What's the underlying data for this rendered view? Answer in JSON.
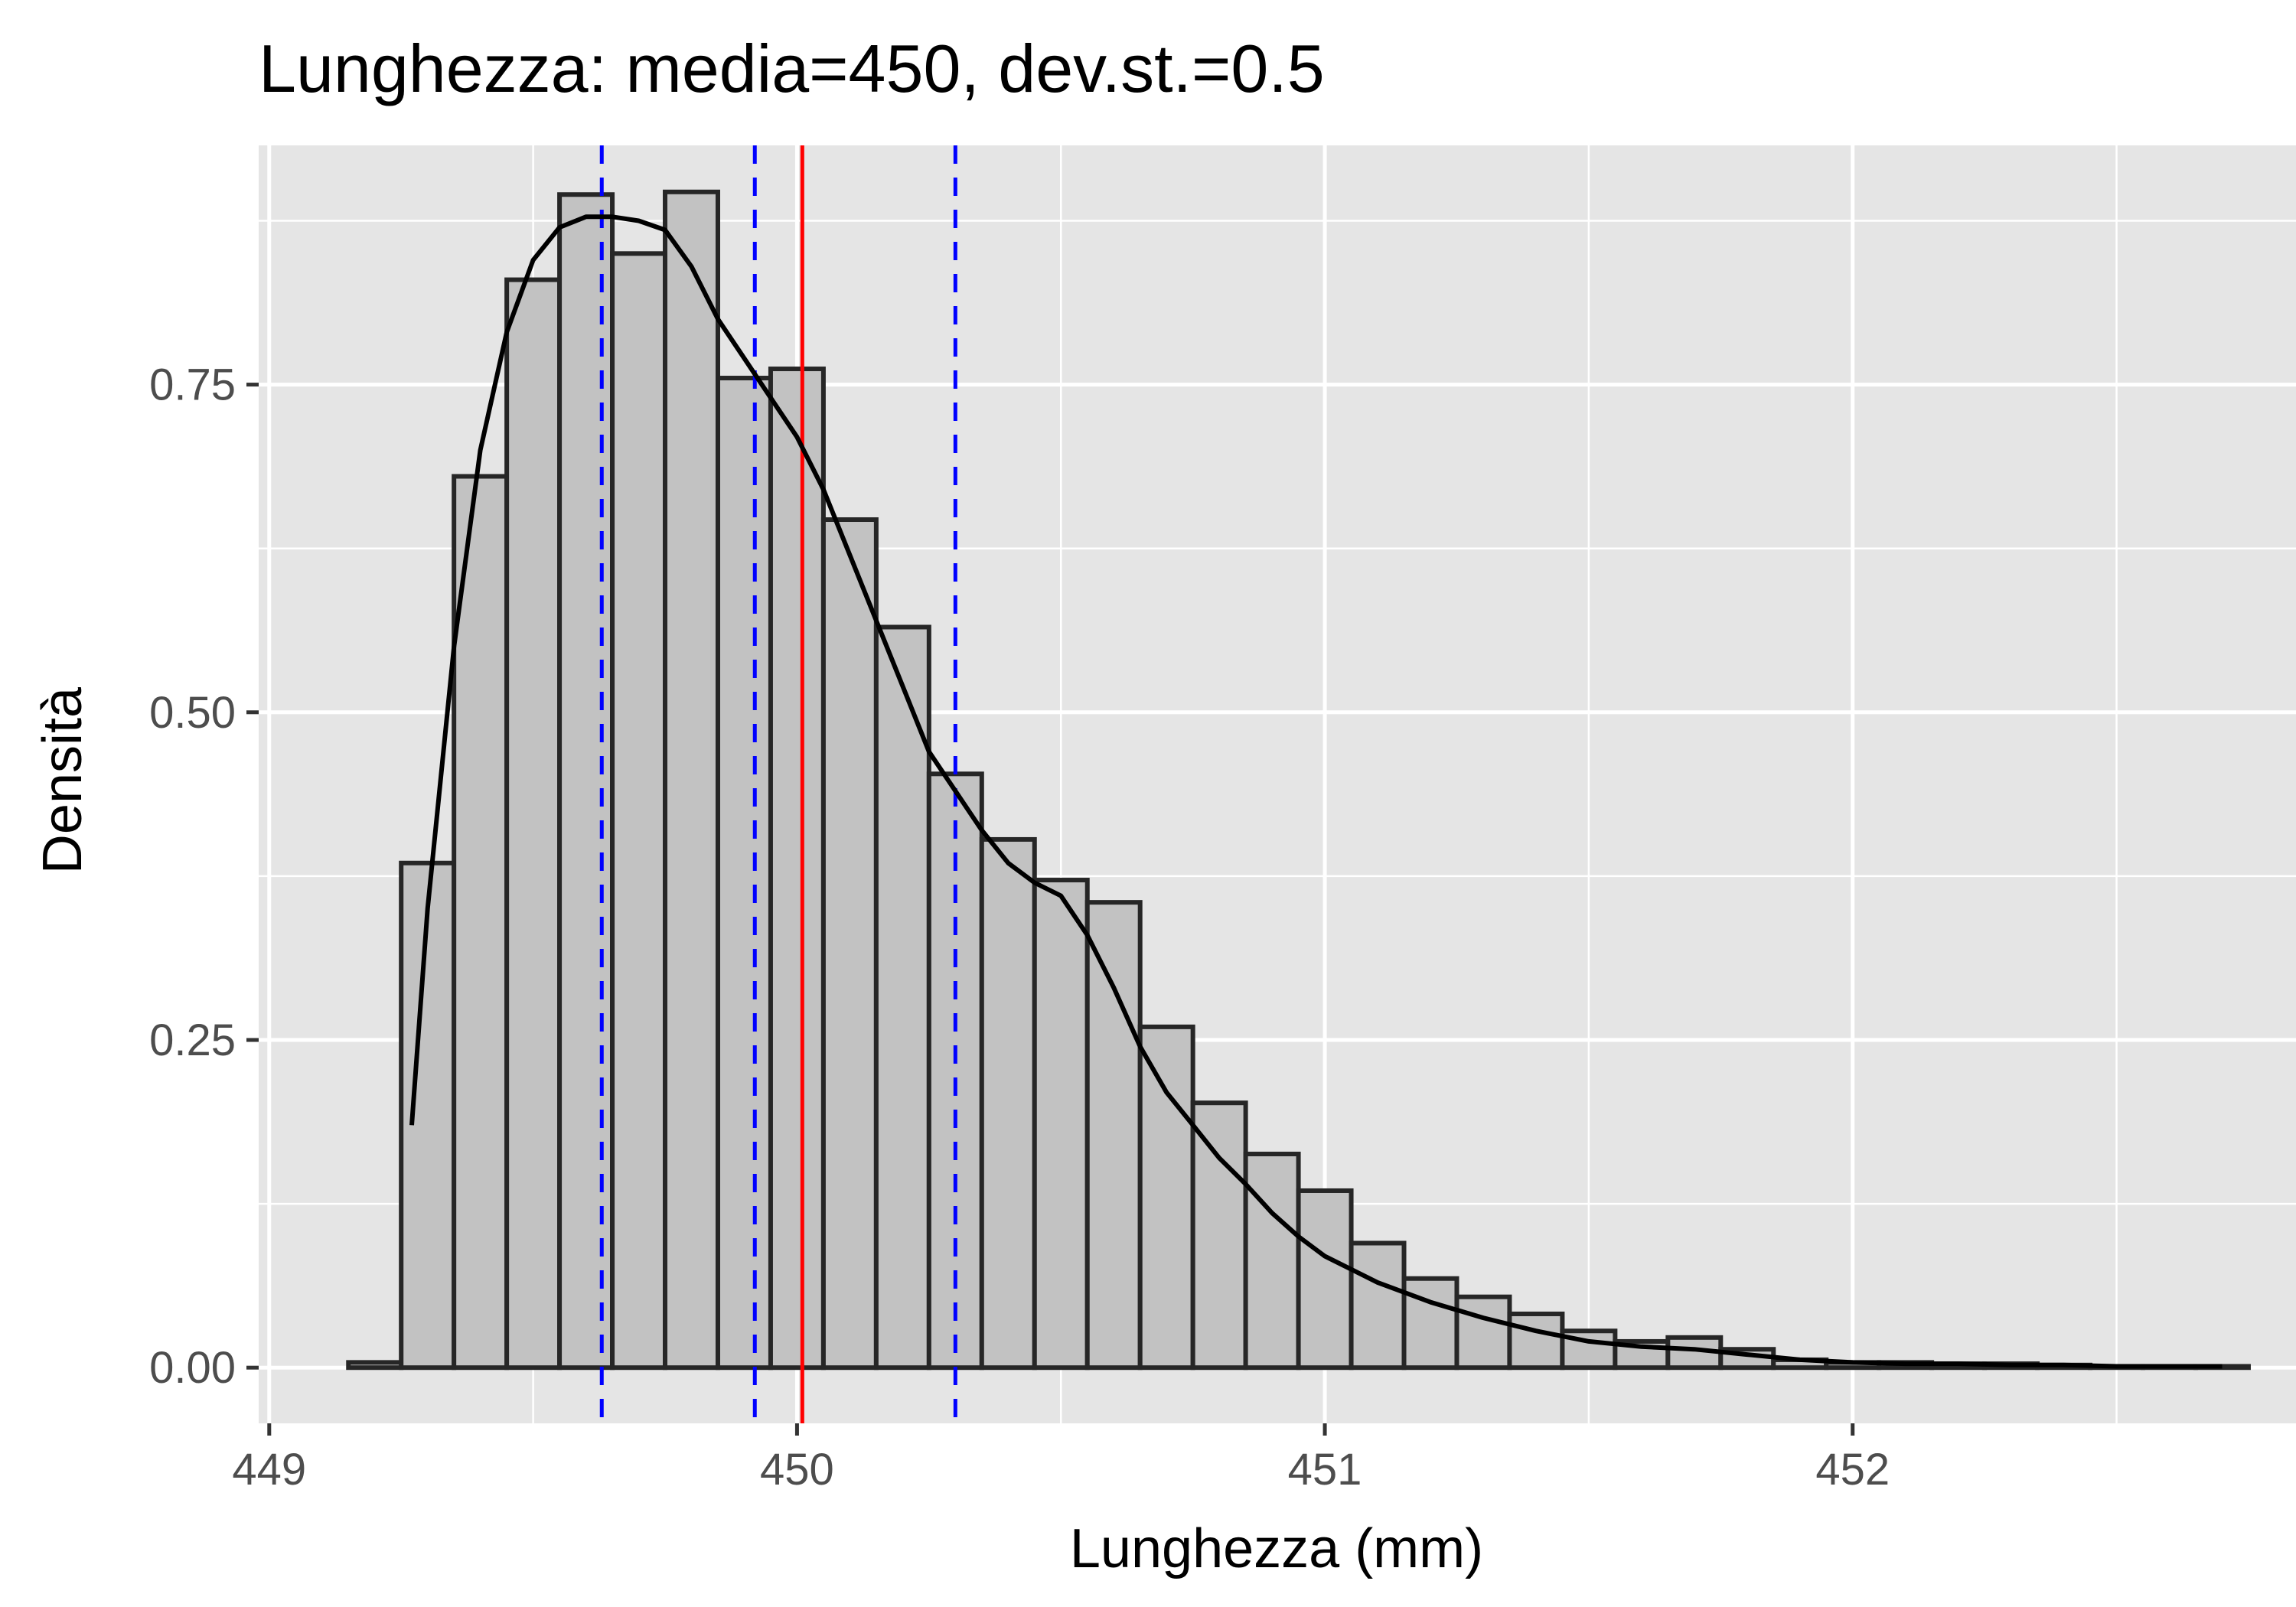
{
  "chart_data": {
    "type": "bar",
    "title": "Lunghezza: media=450, dev.st.=0.5",
    "xlabel": "Lunghezza (mm)",
    "ylabel": "Densità",
    "xlim": [
      448.98,
      452.84
    ],
    "ylim": [
      -0.0425,
      0.9325
    ],
    "x_ticks": [
      449,
      450,
      451,
      452
    ],
    "x_tick_labels": [
      "449",
      "450",
      "451",
      "452"
    ],
    "y_ticks": [
      0.0,
      0.25,
      0.5,
      0.75
    ],
    "y_tick_labels": [
      "0.00",
      "0.25",
      "0.50",
      "0.75"
    ],
    "x_minor_grid": [
      449.5,
      450.5,
      451.5,
      452.5
    ],
    "y_minor_grid": [
      0.125,
      0.375,
      0.625,
      0.875
    ],
    "grid": true,
    "bin_width": 0.1,
    "bins": [
      {
        "x0": 449.15,
        "x1": 449.25,
        "density": 0.004
      },
      {
        "x0": 449.25,
        "x1": 449.35,
        "density": 0.385
      },
      {
        "x0": 449.35,
        "x1": 449.45,
        "density": 0.68
      },
      {
        "x0": 449.45,
        "x1": 449.55,
        "density": 0.83
      },
      {
        "x0": 449.55,
        "x1": 449.65,
        "density": 0.895
      },
      {
        "x0": 449.65,
        "x1": 449.75,
        "density": 0.85
      },
      {
        "x0": 449.75,
        "x1": 449.85,
        "density": 0.897
      },
      {
        "x0": 449.85,
        "x1": 449.95,
        "density": 0.755
      },
      {
        "x0": 449.95,
        "x1": 450.05,
        "density": 0.762
      },
      {
        "x0": 450.05,
        "x1": 450.15,
        "density": 0.647
      },
      {
        "x0": 450.15,
        "x1": 450.25,
        "density": 0.565
      },
      {
        "x0": 450.25,
        "x1": 450.35,
        "density": 0.453
      },
      {
        "x0": 450.35,
        "x1": 450.45,
        "density": 0.403
      },
      {
        "x0": 450.45,
        "x1": 450.55,
        "density": 0.372
      },
      {
        "x0": 450.55,
        "x1": 450.65,
        "density": 0.355
      },
      {
        "x0": 450.65,
        "x1": 450.75,
        "density": 0.26
      },
      {
        "x0": 450.75,
        "x1": 450.85,
        "density": 0.202
      },
      {
        "x0": 450.85,
        "x1": 450.95,
        "density": 0.163
      },
      {
        "x0": 450.95,
        "x1": 451.05,
        "density": 0.135
      },
      {
        "x0": 451.05,
        "x1": 451.15,
        "density": 0.095
      },
      {
        "x0": 451.15,
        "x1": 451.25,
        "density": 0.068
      },
      {
        "x0": 451.25,
        "x1": 451.35,
        "density": 0.054
      },
      {
        "x0": 451.35,
        "x1": 451.45,
        "density": 0.041
      },
      {
        "x0": 451.45,
        "x1": 451.55,
        "density": 0.028
      },
      {
        "x0": 451.55,
        "x1": 451.65,
        "density": 0.02
      },
      {
        "x0": 451.65,
        "x1": 451.75,
        "density": 0.023
      },
      {
        "x0": 451.75,
        "x1": 451.85,
        "density": 0.014
      },
      {
        "x0": 451.85,
        "x1": 451.95,
        "density": 0.006
      },
      {
        "x0": 451.95,
        "x1": 452.05,
        "density": 0.004
      },
      {
        "x0": 452.05,
        "x1": 452.15,
        "density": 0.004
      },
      {
        "x0": 452.15,
        "x1": 452.25,
        "density": 0.003
      },
      {
        "x0": 452.25,
        "x1": 452.35,
        "density": 0.003
      },
      {
        "x0": 452.35,
        "x1": 452.45,
        "density": 0.002
      },
      {
        "x0": 452.45,
        "x1": 452.55,
        "density": 0.001
      },
      {
        "x0": 452.55,
        "x1": 452.65,
        "density": 0.001
      },
      {
        "x0": 452.65,
        "x1": 452.75,
        "density": 0.001
      }
    ],
    "density_curve": {
      "x": [
        449.27,
        449.3,
        449.35,
        449.4,
        449.45,
        449.5,
        449.55,
        449.6,
        449.65,
        449.7,
        449.75,
        449.8,
        449.85,
        449.9,
        449.95,
        450.0,
        450.05,
        450.1,
        450.15,
        450.2,
        450.25,
        450.3,
        450.35,
        450.4,
        450.45,
        450.5,
        450.55,
        450.6,
        450.65,
        450.7,
        450.75,
        450.8,
        450.85,
        450.9,
        450.95,
        451.0,
        451.1,
        451.2,
        451.3,
        451.4,
        451.5,
        451.6,
        451.7,
        451.8,
        451.9,
        452.0,
        452.1,
        452.2,
        452.3,
        452.4,
        452.5,
        452.6,
        452.7
      ],
      "y": [
        0.185,
        0.35,
        0.55,
        0.7,
        0.79,
        0.845,
        0.87,
        0.878,
        0.878,
        0.875,
        0.868,
        0.84,
        0.8,
        0.77,
        0.74,
        0.71,
        0.67,
        0.62,
        0.57,
        0.52,
        0.47,
        0.44,
        0.41,
        0.385,
        0.37,
        0.36,
        0.33,
        0.29,
        0.245,
        0.21,
        0.185,
        0.16,
        0.14,
        0.118,
        0.1,
        0.085,
        0.065,
        0.05,
        0.038,
        0.028,
        0.02,
        0.016,
        0.014,
        0.01,
        0.006,
        0.004,
        0.003,
        0.003,
        0.002,
        0.002,
        0.001,
        0.001,
        0.001
      ]
    },
    "reference_lines": [
      {
        "x": 450.01,
        "color": "#ff0000",
        "style": "solid"
      },
      {
        "x": 449.63,
        "color": "#0000ff",
        "style": "dashed"
      },
      {
        "x": 449.92,
        "color": "#0000ff",
        "style": "dashed"
      },
      {
        "x": 450.3,
        "color": "#0000ff",
        "style": "dashed"
      }
    ],
    "colors": {
      "panel_background": "#e5e5e5",
      "grid": "#ffffff",
      "bar_fill": "#c2c2c2",
      "bar_outline": "#262626",
      "curve": "#000000",
      "axis_text": "#4d4d4d",
      "tick": "#333333"
    }
  }
}
